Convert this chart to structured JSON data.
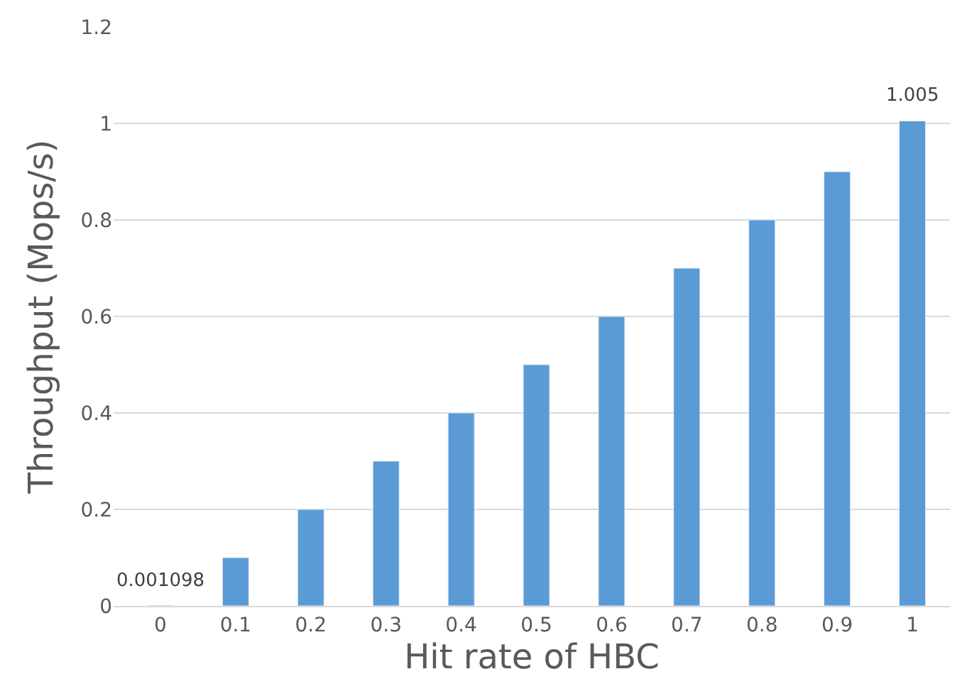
{
  "chart_data": {
    "type": "bar",
    "xlabel": "Hit rate of HBC",
    "ylabel": "Throughput (Mops/s)",
    "categories": [
      "0",
      "0.1",
      "0.2",
      "0.3",
      "0.4",
      "0.5",
      "0.6",
      "0.7",
      "0.8",
      "0.9",
      "1"
    ],
    "values": [
      0.001098,
      0.1,
      0.2,
      0.3,
      0.4,
      0.5,
      0.6,
      0.7,
      0.8,
      0.9,
      1.005
    ],
    "value_labels": [
      "0.001098",
      null,
      null,
      null,
      null,
      null,
      null,
      null,
      null,
      null,
      "1.005"
    ],
    "color": "#5b9bd5",
    "ylim": [
      0,
      1.2
    ],
    "yticks": [
      0,
      0.2,
      0.4,
      0.6,
      0.8,
      1,
      1.2
    ],
    "grid": "y",
    "legend": false
  }
}
